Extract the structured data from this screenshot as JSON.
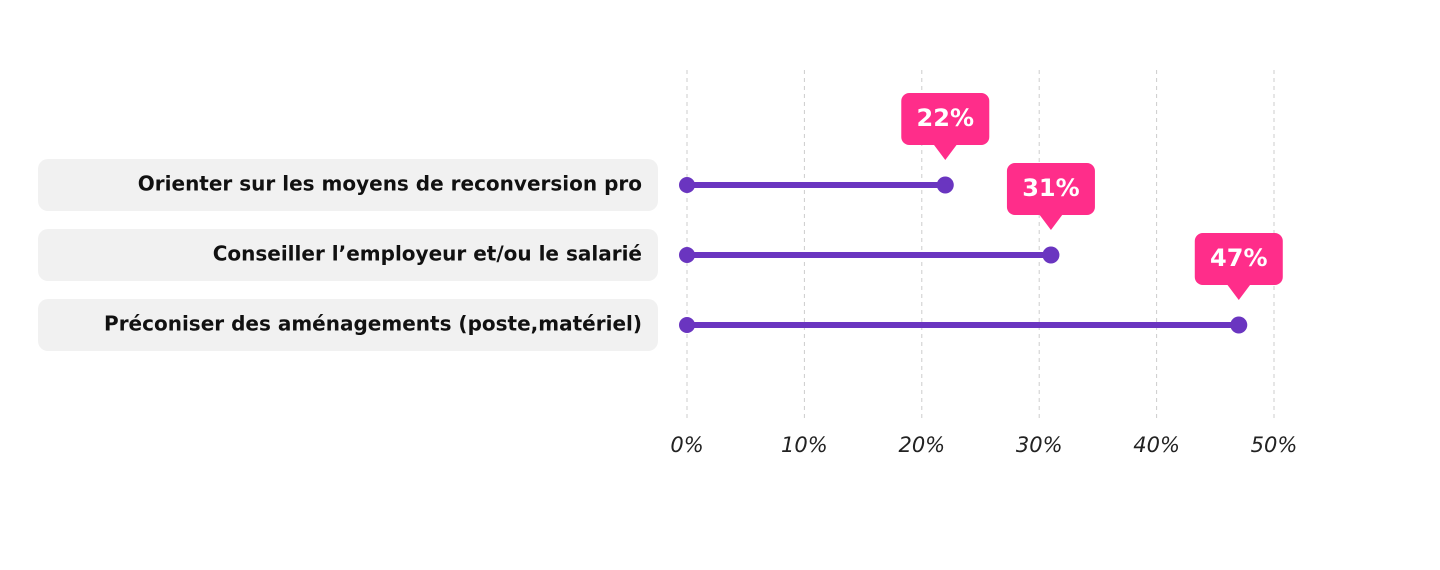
{
  "chart_data": {
    "type": "lollipop",
    "categories": [
      "Orienter sur les moyens de reconversion pro",
      "Conseiller l’employeur et/ou le salarié",
      "Préconiser des aménagements (poste,matériel)"
    ],
    "values": [
      22,
      31,
      47
    ],
    "value_labels": [
      "22%",
      "31%",
      "47%"
    ],
    "color": "#6a35c0",
    "label_color": "#ff2d8a",
    "xlim": [
      0,
      50
    ],
    "xticks": [
      {
        "value": 0,
        "label": "0%"
      },
      {
        "value": 10,
        "label": "10%"
      },
      {
        "value": 20,
        "label": "20%"
      },
      {
        "value": 30,
        "label": "30%"
      },
      {
        "value": 40,
        "label": "40%"
      },
      {
        "value": 50,
        "label": "50%"
      }
    ],
    "grid": true
  }
}
